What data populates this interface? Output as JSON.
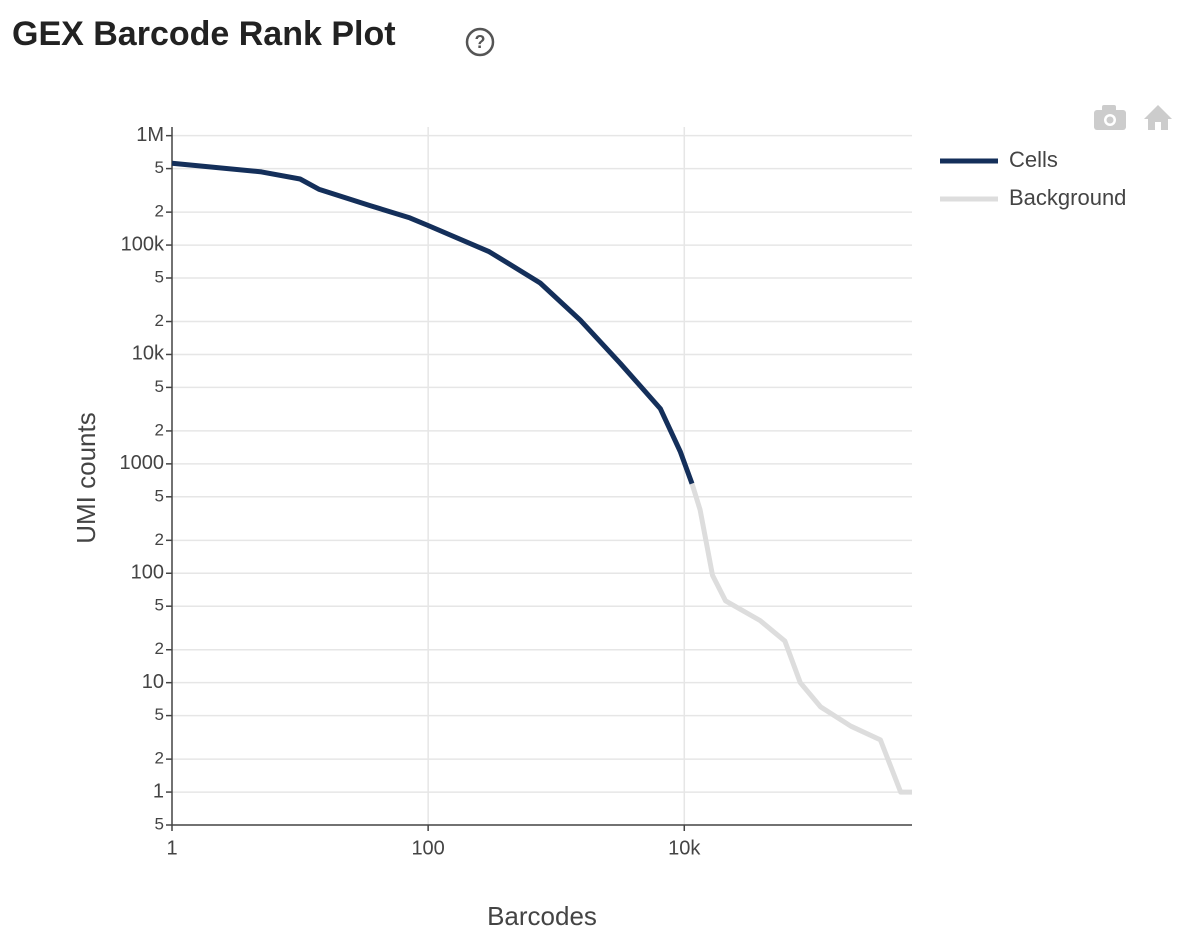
{
  "chart_data": {
    "type": "line",
    "title": "GEX Barcode Rank Plot",
    "xlabel": "Barcodes",
    "ylabel": "UMI counts",
    "xscale": "log",
    "yscale": "log",
    "grid": true,
    "legend": "upper right",
    "xlim": [
      1,
      600000
    ],
    "ylim": [
      0.5,
      1200000
    ],
    "xticks": [
      1,
      100,
      {
        "value": 10000,
        "label": "10k"
      }
    ],
    "yticks": [
      {
        "value": 1000000,
        "label": "1M"
      },
      {
        "value": 500000,
        "label": "5"
      },
      {
        "value": 200000,
        "label": "2"
      },
      {
        "value": 100000,
        "label": "100k"
      },
      {
        "value": 50000,
        "label": "5"
      },
      {
        "value": 20000,
        "label": "2"
      },
      {
        "value": 10000,
        "label": "10k"
      },
      {
        "value": 5000,
        "label": "5"
      },
      {
        "value": 2000,
        "label": "2"
      },
      1000,
      {
        "value": 500,
        "label": "5"
      },
      {
        "value": 200,
        "label": "2"
      },
      100,
      {
        "value": 50,
        "label": "5"
      },
      {
        "value": 20,
        "label": "2"
      },
      10,
      5,
      2,
      1,
      {
        "value": 0.5,
        "label": "5"
      }
    ],
    "series": [
      {
        "name": "Cells",
        "color": "#142f5a",
        "x": [
          1,
          5,
          10,
          14,
          35,
          72,
          100,
          300,
          750,
          1540,
          3160,
          6500,
          9300,
          11500
        ],
        "values": [
          560000,
          466000,
          402000,
          324000,
          230000,
          177000,
          151000,
          87000,
          45000,
          20600,
          8300,
          3200,
          1300,
          660
        ]
      },
      {
        "name": "Background",
        "color": "#dddddd",
        "x": [
          11500,
          13300,
          16600,
          21000,
          39000,
          61000,
          80600,
          116000,
          200000,
          340000,
          490000,
          600000
        ],
        "values": [
          660,
          380,
          96,
          56,
          37,
          24,
          10,
          6,
          4,
          3,
          1,
          1
        ]
      }
    ]
  }
}
